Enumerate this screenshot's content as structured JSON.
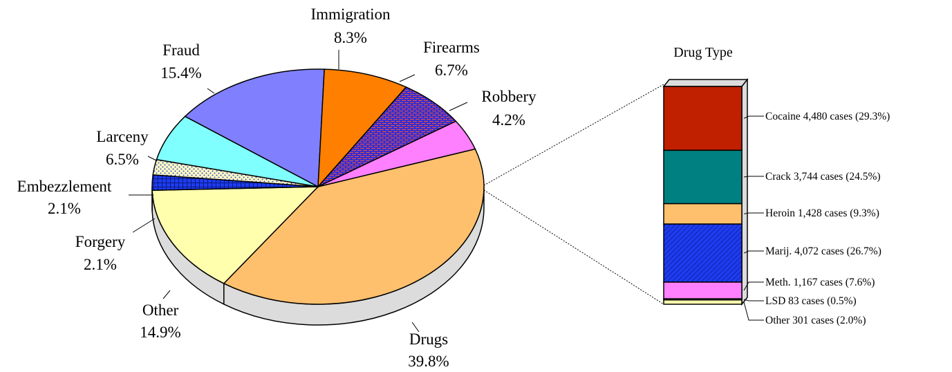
{
  "chart_data": [
    {
      "type": "pie",
      "series": [
        {
          "name": "Drugs",
          "pct_label": "39.8%",
          "value": 39.8,
          "color": "#FFC06E",
          "pattern": "solid"
        },
        {
          "name": "Other",
          "pct_label": "14.9%",
          "value": 14.9,
          "color": "#FFFFAE",
          "pattern": "solid"
        },
        {
          "name": "Forgery",
          "pct_label": "2.1%",
          "value": 2.1,
          "color": "#1E3CF0",
          "pattern": "grid"
        },
        {
          "name": "Embezzlement",
          "pct_label": "2.1%",
          "value": 2.1,
          "color": "#FFF8C0",
          "pattern": "dots"
        },
        {
          "name": "Larceny",
          "pct_label": "6.5%",
          "value": 6.5,
          "color": "#80FFFF",
          "pattern": "solid"
        },
        {
          "name": "Fraud",
          "pct_label": "15.4%",
          "value": 15.4,
          "color": "#8080FF",
          "pattern": "solid"
        },
        {
          "name": "Immigration",
          "pct_label": "8.3%",
          "value": 8.3,
          "color": "#FF8000",
          "pattern": "solid"
        },
        {
          "name": "Firearms",
          "pct_label": "6.7%",
          "value": 6.7,
          "color": "#2A2AD8",
          "pattern": "bricks"
        },
        {
          "name": "Robbery",
          "pct_label": "4.2%",
          "value": 4.2,
          "color": "#FF80FF",
          "pattern": "solid"
        }
      ]
    },
    {
      "type": "bar",
      "title": "Drug Type",
      "stacked": true,
      "series": [
        {
          "name": "Cocaine",
          "label": "Cocaine  4,480 cases (29.3%)",
          "value": 4480,
          "pct": 29.3,
          "color": "#C02000",
          "pattern": "solid"
        },
        {
          "name": "Crack",
          "label": "Crack  3,744 cases (24.5%)",
          "value": 3744,
          "pct": 24.5,
          "color": "#008080",
          "pattern": "solid"
        },
        {
          "name": "Heroin",
          "label": "Heroin  1,428 cases (9.3%)",
          "value": 1428,
          "pct": 9.3,
          "color": "#FFC06E",
          "pattern": "solid"
        },
        {
          "name": "Marij.",
          "label": "Marij.  4,072 cases (26.7%)",
          "value": 4072,
          "pct": 26.7,
          "color": "#1E3CF0",
          "pattern": "hatch"
        },
        {
          "name": "Meth.",
          "label": "Meth.  1,167 cases (7.6%)",
          "value": 1167,
          "pct": 7.6,
          "color": "#FF80FF",
          "pattern": "solid"
        },
        {
          "name": "LSD",
          "label": "LSD  83 cases (0.5%)",
          "value": 83,
          "pct": 0.5,
          "color": "#F0F0F0",
          "pattern": "solid"
        },
        {
          "name": "Other",
          "label": "Other  301 cases (2.0%)",
          "value": 301,
          "pct": 2.0,
          "color": "#FFFFAE",
          "pattern": "solid"
        }
      ]
    }
  ]
}
